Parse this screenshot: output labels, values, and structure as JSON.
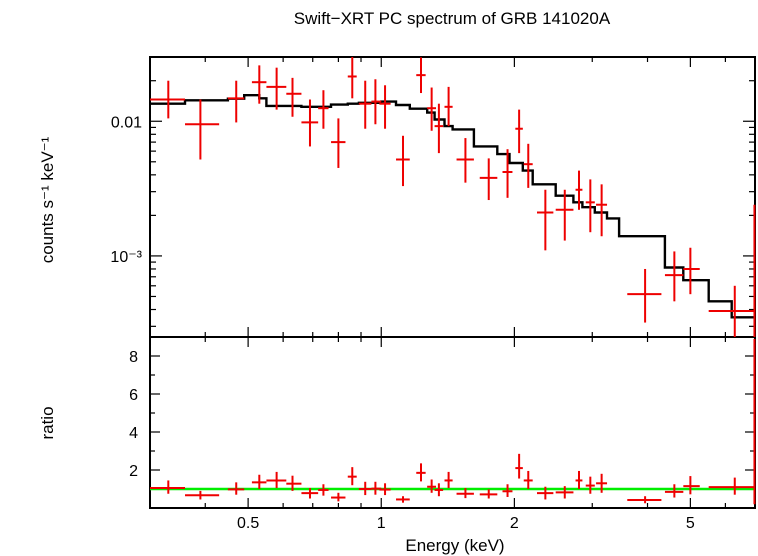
{
  "chart_data": [
    {
      "panel": "spectrum",
      "type": "scatter",
      "title": "Swift−XRT PC spectrum of GRB 141020A",
      "ylabel": "counts s⁻¹ keV⁻¹",
      "x_scale": "log",
      "y_scale": "log",
      "xlim": [
        0.3,
        7.0
      ],
      "ylim": [
        0.00025,
        0.03
      ],
      "y_tick_labels": [
        "0.01",
        "10⁻³"
      ],
      "y_ticks": [
        0.01,
        0.001
      ],
      "series": [
        {
          "color": "#ee0000",
          "style": "crosses",
          "points": [
            {
              "x": 0.33,
              "xlo": 0.3,
              "xhi": 0.36,
              "y": 0.0145,
              "ylo": 0.0105,
              "yhi": 0.02
            },
            {
              "x": 0.39,
              "xlo": 0.36,
              "xhi": 0.43,
              "y": 0.0095,
              "ylo": 0.0052,
              "yhi": 0.0145
            },
            {
              "x": 0.47,
              "xlo": 0.45,
              "xhi": 0.49,
              "y": 0.0148,
              "ylo": 0.0098,
              "yhi": 0.02
            },
            {
              "x": 0.53,
              "xlo": 0.51,
              "xhi": 0.55,
              "y": 0.0195,
              "ylo": 0.0135,
              "yhi": 0.026
            },
            {
              "x": 0.58,
              "xlo": 0.55,
              "xhi": 0.61,
              "y": 0.018,
              "ylo": 0.0122,
              "yhi": 0.025
            },
            {
              "x": 0.63,
              "xlo": 0.61,
              "xhi": 0.66,
              "y": 0.016,
              "ylo": 0.0108,
              "yhi": 0.021
            },
            {
              "x": 0.69,
              "xlo": 0.66,
              "xhi": 0.72,
              "y": 0.0098,
              "ylo": 0.0065,
              "yhi": 0.0145
            },
            {
              "x": 0.74,
              "xlo": 0.72,
              "xhi": 0.76,
              "y": 0.0125,
              "ylo": 0.0088,
              "yhi": 0.017
            },
            {
              "x": 0.8,
              "xlo": 0.77,
              "xhi": 0.83,
              "y": 0.007,
              "ylo": 0.0045,
              "yhi": 0.0105
            },
            {
              "x": 0.86,
              "xlo": 0.84,
              "xhi": 0.88,
              "y": 0.0215,
              "ylo": 0.0148,
              "yhi": 0.03
            },
            {
              "x": 0.92,
              "xlo": 0.89,
              "xhi": 0.95,
              "y": 0.0135,
              "ylo": 0.0088,
              "yhi": 0.02
            },
            {
              "x": 0.97,
              "xlo": 0.95,
              "xhi": 1.0,
              "y": 0.014,
              "ylo": 0.0095,
              "yhi": 0.0205
            },
            {
              "x": 1.02,
              "xlo": 0.99,
              "xhi": 1.05,
              "y": 0.0135,
              "ylo": 0.0088,
              "yhi": 0.0185
            },
            {
              "x": 1.12,
              "xlo": 1.08,
              "xhi": 1.16,
              "y": 0.0052,
              "ylo": 0.0033,
              "yhi": 0.0078
            },
            {
              "x": 1.23,
              "xlo": 1.2,
              "xhi": 1.26,
              "y": 0.022,
              "ylo": 0.0162,
              "yhi": 0.0298
            },
            {
              "x": 1.3,
              "xlo": 1.27,
              "xhi": 1.33,
              "y": 0.0125,
              "ylo": 0.0085,
              "yhi": 0.0178
            },
            {
              "x": 1.35,
              "xlo": 1.32,
              "xhi": 1.38,
              "y": 0.0092,
              "ylo": 0.0058,
              "yhi": 0.0135
            },
            {
              "x": 1.42,
              "xlo": 1.39,
              "xhi": 1.45,
              "y": 0.0128,
              "ylo": 0.0092,
              "yhi": 0.018
            },
            {
              "x": 1.55,
              "xlo": 1.48,
              "xhi": 1.62,
              "y": 0.0052,
              "ylo": 0.0035,
              "yhi": 0.0075
            },
            {
              "x": 1.75,
              "xlo": 1.67,
              "xhi": 1.83,
              "y": 0.0038,
              "ylo": 0.0026,
              "yhi": 0.0053
            },
            {
              "x": 1.93,
              "xlo": 1.88,
              "xhi": 1.98,
              "y": 0.0042,
              "ylo": 0.0027,
              "yhi": 0.0062
            },
            {
              "x": 2.05,
              "xlo": 2.01,
              "xhi": 2.09,
              "y": 0.0088,
              "ylo": 0.0058,
              "yhi": 0.0122
            },
            {
              "x": 2.15,
              "xlo": 2.1,
              "xhi": 2.2,
              "y": 0.0048,
              "ylo": 0.0032,
              "yhi": 0.0068
            },
            {
              "x": 2.35,
              "xlo": 2.25,
              "xhi": 2.45,
              "y": 0.0021,
              "ylo": 0.0011,
              "yhi": 0.0031
            },
            {
              "x": 2.6,
              "xlo": 2.48,
              "xhi": 2.72,
              "y": 0.0022,
              "ylo": 0.0013,
              "yhi": 0.0031
            },
            {
              "x": 2.8,
              "xlo": 2.75,
              "xhi": 2.85,
              "y": 0.0031,
              "ylo": 0.0022,
              "yhi": 0.0043
            },
            {
              "x": 2.97,
              "xlo": 2.9,
              "xhi": 3.04,
              "y": 0.0025,
              "ylo": 0.0015,
              "yhi": 0.0037
            },
            {
              "x": 3.15,
              "xlo": 3.06,
              "xhi": 3.24,
              "y": 0.0024,
              "ylo": 0.0014,
              "yhi": 0.0034
            },
            {
              "x": 3.95,
              "xlo": 3.6,
              "xhi": 4.3,
              "y": 0.00052,
              "ylo": 0.00032,
              "yhi": 0.0008
            },
            {
              "x": 4.6,
              "xlo": 4.38,
              "xhi": 4.82,
              "y": 0.00072,
              "ylo": 0.00046,
              "yhi": 0.00108
            },
            {
              "x": 5.0,
              "xlo": 4.82,
              "xhi": 5.25,
              "y": 0.0008,
              "ylo": 0.00052,
              "yhi": 0.00115
            },
            {
              "x": 6.3,
              "xlo": 5.5,
              "xhi": 7.0,
              "y": 0.00039,
              "ylo": 0.00025,
              "yhi": 0.0006
            },
            {
              "x": 6.98,
              "xlo": 6.97,
              "xhi": 7.0,
              "y": 0.0003,
              "ylo": 0.00025,
              "yhi": 0.0024
            }
          ]
        },
        {
          "color": "#000000",
          "style": "step",
          "steps": [
            [
              0.3,
              0.0135
            ],
            [
              0.36,
              0.0143
            ],
            [
              0.45,
              0.0147
            ],
            [
              0.49,
              0.0156
            ],
            [
              0.53,
              0.0148
            ],
            [
              0.55,
              0.013
            ],
            [
              0.66,
              0.0128
            ],
            [
              0.77,
              0.0133
            ],
            [
              0.84,
              0.0135
            ],
            [
              0.89,
              0.0137
            ],
            [
              1.0,
              0.014
            ],
            [
              1.08,
              0.0132
            ],
            [
              1.16,
              0.0124
            ],
            [
              1.27,
              0.0116
            ],
            [
              1.32,
              0.0103
            ],
            [
              1.39,
              0.0092
            ],
            [
              1.45,
              0.0087
            ],
            [
              1.62,
              0.0065
            ],
            [
              1.83,
              0.0057
            ],
            [
              1.95,
              0.0049
            ],
            [
              2.09,
              0.0043
            ],
            [
              2.2,
              0.0034
            ],
            [
              2.48,
              0.0028
            ],
            [
              2.72,
              0.0025
            ],
            [
              2.85,
              0.0023
            ],
            [
              3.04,
              0.0021
            ],
            [
              3.24,
              0.0019
            ],
            [
              3.45,
              0.0014
            ],
            [
              4.38,
              0.00082
            ],
            [
              4.82,
              0.00066
            ],
            [
              5.5,
              0.00046
            ],
            [
              6.2,
              0.00035
            ],
            [
              7.0,
              0.00035
            ]
          ]
        }
      ]
    },
    {
      "panel": "ratio",
      "type": "scatter",
      "xlabel": "Energy (keV)",
      "ylabel": "ratio",
      "x_scale": "log",
      "xlim": [
        0.3,
        7.0
      ],
      "ylim": [
        0.0,
        9.0
      ],
      "y_ticks": [
        2,
        4,
        6,
        8
      ],
      "y_tick_labels": [
        "2",
        "4",
        "6",
        "8"
      ],
      "x_ticks": [
        0.5,
        1,
        2,
        5
      ],
      "x_tick_labels": [
        "0.5",
        "1",
        "2",
        "5"
      ],
      "reference_line": {
        "y": 1.0,
        "color": "#00ee00"
      },
      "series": [
        {
          "color": "#ee0000",
          "style": "crosses",
          "points": [
            {
              "x": 0.33,
              "xlo": 0.3,
              "xhi": 0.36,
              "y": 1.05,
              "ylo": 0.75,
              "yhi": 1.45
            },
            {
              "x": 0.39,
              "xlo": 0.36,
              "xhi": 0.43,
              "y": 0.67,
              "ylo": 0.45,
              "yhi": 0.9
            },
            {
              "x": 0.47,
              "xlo": 0.45,
              "xhi": 0.49,
              "y": 0.98,
              "ylo": 0.7,
              "yhi": 1.35
            },
            {
              "x": 0.53,
              "xlo": 0.51,
              "xhi": 0.55,
              "y": 1.35,
              "ylo": 1.0,
              "yhi": 1.75
            },
            {
              "x": 0.58,
              "xlo": 0.55,
              "xhi": 0.61,
              "y": 1.45,
              "ylo": 1.05,
              "yhi": 1.9
            },
            {
              "x": 0.63,
              "xlo": 0.61,
              "xhi": 0.66,
              "y": 1.28,
              "ylo": 0.9,
              "yhi": 1.7
            },
            {
              "x": 0.69,
              "xlo": 0.66,
              "xhi": 0.72,
              "y": 0.78,
              "ylo": 0.5,
              "yhi": 1.05
            },
            {
              "x": 0.74,
              "xlo": 0.72,
              "xhi": 0.76,
              "y": 0.95,
              "ylo": 0.65,
              "yhi": 1.25
            },
            {
              "x": 0.8,
              "xlo": 0.77,
              "xhi": 0.83,
              "y": 0.55,
              "ylo": 0.35,
              "yhi": 0.8
            },
            {
              "x": 0.86,
              "xlo": 0.84,
              "xhi": 0.88,
              "y": 1.65,
              "ylo": 1.2,
              "yhi": 2.15
            },
            {
              "x": 0.92,
              "xlo": 0.89,
              "xhi": 0.95,
              "y": 1.0,
              "ylo": 0.68,
              "yhi": 1.38
            },
            {
              "x": 0.97,
              "xlo": 0.95,
              "xhi": 1.0,
              "y": 1.02,
              "ylo": 0.7,
              "yhi": 1.38
            },
            {
              "x": 1.02,
              "xlo": 0.99,
              "xhi": 1.05,
              "y": 0.97,
              "ylo": 0.68,
              "yhi": 1.3
            },
            {
              "x": 1.12,
              "xlo": 1.08,
              "xhi": 1.16,
              "y": 0.45,
              "ylo": 0.28,
              "yhi": 0.62
            },
            {
              "x": 1.23,
              "xlo": 1.2,
              "xhi": 1.26,
              "y": 1.85,
              "ylo": 1.4,
              "yhi": 2.35
            },
            {
              "x": 1.3,
              "xlo": 1.27,
              "xhi": 1.33,
              "y": 1.12,
              "ylo": 0.8,
              "yhi": 1.5
            },
            {
              "x": 1.35,
              "xlo": 1.32,
              "xhi": 1.38,
              "y": 0.95,
              "ylo": 0.62,
              "yhi": 1.3
            },
            {
              "x": 1.42,
              "xlo": 1.39,
              "xhi": 1.45,
              "y": 1.45,
              "ylo": 1.05,
              "yhi": 1.9
            },
            {
              "x": 1.55,
              "xlo": 1.48,
              "xhi": 1.62,
              "y": 0.75,
              "ylo": 0.52,
              "yhi": 1.05
            },
            {
              "x": 1.75,
              "xlo": 1.67,
              "xhi": 1.83,
              "y": 0.72,
              "ylo": 0.5,
              "yhi": 0.98
            },
            {
              "x": 1.93,
              "xlo": 1.88,
              "xhi": 1.98,
              "y": 0.88,
              "ylo": 0.58,
              "yhi": 1.25
            },
            {
              "x": 2.05,
              "xlo": 2.01,
              "xhi": 2.09,
              "y": 2.1,
              "ylo": 1.55,
              "yhi": 2.85
            },
            {
              "x": 2.15,
              "xlo": 2.1,
              "xhi": 2.2,
              "y": 1.45,
              "ylo": 1.0,
              "yhi": 1.95
            },
            {
              "x": 2.35,
              "xlo": 2.25,
              "xhi": 2.45,
              "y": 0.78,
              "ylo": 0.45,
              "yhi": 1.12
            },
            {
              "x": 2.6,
              "xlo": 2.48,
              "xhi": 2.72,
              "y": 0.82,
              "ylo": 0.5,
              "yhi": 1.15
            },
            {
              "x": 2.8,
              "xlo": 2.75,
              "xhi": 2.85,
              "y": 1.45,
              "ylo": 1.0,
              "yhi": 1.95
            },
            {
              "x": 2.97,
              "xlo": 2.9,
              "xhi": 3.04,
              "y": 1.18,
              "ylo": 0.75,
              "yhi": 1.65
            },
            {
              "x": 3.15,
              "xlo": 3.06,
              "xhi": 3.24,
              "y": 1.3,
              "ylo": 0.8,
              "yhi": 1.8
            },
            {
              "x": 3.95,
              "xlo": 3.6,
              "xhi": 4.3,
              "y": 0.42,
              "ylo": 0.25,
              "yhi": 0.62
            },
            {
              "x": 4.6,
              "xlo": 4.38,
              "xhi": 4.82,
              "y": 0.85,
              "ylo": 0.55,
              "yhi": 1.25
            },
            {
              "x": 5.0,
              "xlo": 4.82,
              "xhi": 5.25,
              "y": 1.15,
              "ylo": 0.72,
              "yhi": 1.68
            },
            {
              "x": 6.3,
              "xlo": 5.5,
              "xhi": 7.0,
              "y": 1.1,
              "ylo": 0.7,
              "yhi": 1.6
            },
            {
              "x": 6.98,
              "xlo": 6.97,
              "xhi": 7.0,
              "y": 1.0,
              "ylo": 0.2,
              "yhi": 8.9
            }
          ]
        }
      ]
    }
  ]
}
